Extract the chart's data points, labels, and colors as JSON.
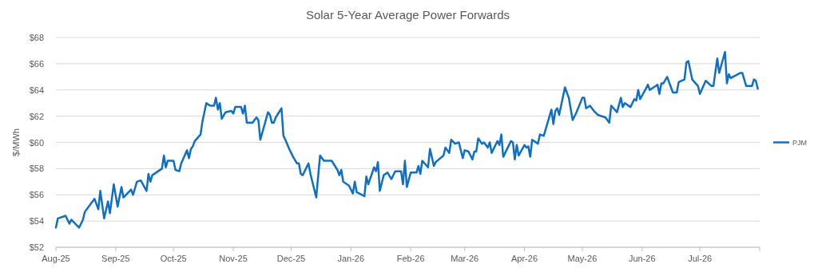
{
  "chart_data": {
    "type": "line",
    "title": "Solar 5-Year Average Power Forwards",
    "ylabel": "$/MWh",
    "x": [
      "2025-08-01",
      "2025-08-02",
      "2025-08-06",
      "2025-08-08",
      "2025-08-09",
      "2025-08-13",
      "2025-08-15",
      "2025-08-16",
      "2025-08-21",
      "2025-08-23",
      "2025-08-24",
      "2025-08-26",
      "2025-08-28",
      "2025-08-29",
      "2025-08-31",
      "2025-09-02",
      "2025-09-04",
      "2025-09-05",
      "2025-09-09",
      "2025-09-10",
      "2025-09-12",
      "2025-09-14",
      "2025-09-17",
      "2025-09-18",
      "2025-09-19",
      "2025-09-20",
      "2025-09-25",
      "2025-09-26",
      "2025-09-27",
      "2025-09-28",
      "2025-10-01",
      "2025-10-02",
      "2025-10-04",
      "2025-10-05",
      "2025-10-08",
      "2025-10-09",
      "2025-10-10",
      "2025-10-11",
      "2025-10-12",
      "2025-10-15",
      "2025-10-16",
      "2025-10-18",
      "2025-10-20",
      "2025-10-22",
      "2025-10-23",
      "2025-10-24",
      "2025-10-25",
      "2025-10-26",
      "2025-10-28",
      "2025-10-31",
      "2025-11-01",
      "2025-11-02",
      "2025-11-05",
      "2025-11-06",
      "2025-11-07",
      "2025-11-08",
      "2025-11-11",
      "2025-11-13",
      "2025-11-14",
      "2025-11-15",
      "2025-11-19",
      "2025-11-20",
      "2025-11-21",
      "2025-11-22",
      "2025-11-23",
      "2025-11-26",
      "2025-11-27",
      "2025-11-28",
      "2025-11-30",
      "2025-12-02",
      "2025-12-04",
      "2025-12-05",
      "2025-12-06",
      "2025-12-07",
      "2025-12-10",
      "2025-12-11",
      "2025-12-14",
      "2025-12-16",
      "2025-12-18",
      "2025-12-22",
      "2025-12-25",
      "2025-12-26",
      "2025-12-27",
      "2025-12-28",
      "2025-12-31",
      "2026-01-02",
      "2026-01-03",
      "2026-01-04",
      "2026-01-08",
      "2026-01-09",
      "2026-01-10",
      "2026-01-13",
      "2026-01-14",
      "2026-01-15",
      "2026-01-16",
      "2026-01-18",
      "2026-01-20",
      "2026-01-22",
      "2026-01-24",
      "2026-01-27",
      "2026-01-28",
      "2026-01-29",
      "2026-01-30",
      "2026-02-01",
      "2026-02-04",
      "2026-02-05",
      "2026-02-06",
      "2026-02-07",
      "2026-02-10",
      "2026-02-11",
      "2026-02-13",
      "2026-02-14",
      "2026-02-18",
      "2026-02-19",
      "2026-02-21",
      "2026-02-22",
      "2026-02-24",
      "2026-02-26",
      "2026-02-28",
      "2026-03-01",
      "2026-03-03",
      "2026-03-05",
      "2026-03-06",
      "2026-03-07",
      "2026-03-08",
      "2026-03-10",
      "2026-03-11",
      "2026-03-13",
      "2026-03-14",
      "2026-03-15",
      "2026-03-18",
      "2026-03-19",
      "2026-03-20",
      "2026-03-21",
      "2026-03-25",
      "2026-03-26",
      "2026-03-27",
      "2026-03-28",
      "2026-03-29",
      "2026-04-01",
      "2026-04-02",
      "2026-04-03",
      "2026-04-04",
      "2026-04-05",
      "2026-04-08",
      "2026-04-09",
      "2026-04-11",
      "2026-04-15",
      "2026-04-16",
      "2026-04-17",
      "2026-04-18",
      "2026-04-19",
      "2026-04-22",
      "2026-04-24",
      "2026-04-26",
      "2026-04-28",
      "2026-05-01",
      "2026-05-02",
      "2026-05-03",
      "2026-05-05",
      "2026-05-07",
      "2026-05-09",
      "2026-05-13",
      "2026-05-15",
      "2026-05-16",
      "2026-05-19",
      "2026-05-21",
      "2026-05-22",
      "2026-05-23",
      "2026-05-26",
      "2026-05-28",
      "2026-05-29",
      "2026-05-30",
      "2026-05-31",
      "2026-06-03",
      "2026-06-04",
      "2026-06-05",
      "2026-06-09",
      "2026-06-10",
      "2026-06-11",
      "2026-06-12",
      "2026-06-14",
      "2026-06-16",
      "2026-06-17",
      "2026-06-19",
      "2026-06-20",
      "2026-06-23",
      "2026-06-24",
      "2026-06-25",
      "2026-06-27",
      "2026-06-30",
      "2026-07-01",
      "2026-07-04",
      "2026-07-07",
      "2026-07-08",
      "2026-07-10",
      "2026-07-11",
      "2026-07-14",
      "2026-07-15",
      "2026-07-16",
      "2026-07-17",
      "2026-07-22",
      "2026-07-23",
      "2026-07-25",
      "2026-07-28",
      "2026-07-29",
      "2026-07-30",
      "2026-07-31"
    ],
    "series": [
      {
        "name": "PJM",
        "color": "#0f6fc6",
        "values": [
          53.5,
          54.2,
          54.4,
          53.8,
          54.1,
          53.5,
          54.1,
          54.7,
          55.7,
          54.9,
          56.3,
          54.2,
          55.5,
          54.6,
          56.8,
          55.1,
          56.6,
          55.8,
          56.4,
          56.0,
          57.0,
          57.1,
          56.3,
          57.6,
          57.0,
          57.5,
          58.0,
          59.0,
          58.1,
          58.6,
          58.6,
          57.9,
          57.8,
          58.4,
          59.4,
          58.8,
          59.5,
          59.7,
          60.1,
          60.6,
          61.6,
          63.0,
          62.8,
          62.8,
          63.4,
          62.5,
          63.0,
          61.8,
          62.3,
          62.4,
          62.2,
          62.7,
          62.7,
          62.2,
          62.8,
          61.5,
          61.5,
          61.9,
          61.7,
          60.2,
          62.3,
          62.1,
          61.5,
          61.5,
          61.9,
          62.6,
          60.5,
          60.2,
          59.5,
          58.9,
          58.4,
          58.4,
          57.6,
          57.5,
          58.4,
          57.6,
          55.8,
          59.0,
          58.6,
          58.6,
          57.9,
          57.5,
          57.9,
          57.0,
          56.7,
          56.1,
          57.0,
          56.2,
          55.9,
          57.4,
          56.8,
          58.1,
          57.8,
          58.5,
          56.3,
          57.5,
          57.7,
          57.2,
          57.8,
          57.8,
          56.8,
          58.6,
          56.6,
          57.7,
          57.7,
          58.2,
          57.6,
          58.6,
          58.1,
          59.5,
          58.2,
          58.5,
          59.0,
          59.6,
          59.2,
          60.2,
          59.9,
          60.0,
          58.8,
          59.4,
          59.3,
          58.7,
          59.3,
          59.3,
          60.3,
          59.9,
          60.0,
          59.6,
          60.0,
          59.2,
          60.1,
          59.8,
          60.6,
          58.9,
          60.1,
          60.0,
          58.7,
          59.8,
          59.0,
          59.8,
          59.6,
          59.7,
          58.9,
          60.2,
          59.9,
          60.6,
          60.5,
          62.5,
          61.4,
          62.4,
          62.6,
          62.1,
          64.2,
          63.4,
          61.7,
          62.3,
          63.4,
          63.4,
          62.6,
          62.8,
          62.4,
          62.1,
          61.9,
          61.5,
          62.8,
          62.3,
          63.4,
          62.7,
          63.0,
          62.7,
          63.3,
          63.2,
          64.0,
          63.3,
          64.1,
          64.4,
          64.0,
          64.4,
          63.7,
          64.5,
          64.5,
          65.0,
          64.2,
          63.8,
          63.8,
          64.6,
          64.8,
          66.1,
          66.2,
          64.8,
          64.3,
          63.7,
          64.7,
          64.3,
          64.3,
          66.4,
          65.3,
          66.9,
          64.5,
          65.2,
          64.9,
          65.3,
          65.3,
          64.3,
          64.3,
          64.8,
          64.7,
          64.1
        ]
      }
    ],
    "xlim": [
      "2025-08-01",
      "2026-08-01"
    ],
    "xticks": [
      {
        "value": "2025-08-01",
        "label": "Aug-25"
      },
      {
        "value": "2025-09-01",
        "label": "Sep-25"
      },
      {
        "value": "2025-10-01",
        "label": "Oct-25"
      },
      {
        "value": "2025-11-01",
        "label": "Nov-25"
      },
      {
        "value": "2025-12-01",
        "label": "Dec-25"
      },
      {
        "value": "2026-01-01",
        "label": "Jan-26"
      },
      {
        "value": "2026-02-01",
        "label": "Feb-26"
      },
      {
        "value": "2026-03-01",
        "label": "Mar-26"
      },
      {
        "value": "2026-04-01",
        "label": "Apr-26"
      },
      {
        "value": "2026-05-01",
        "label": "May-26"
      },
      {
        "value": "2026-06-01",
        "label": "Jun-26"
      },
      {
        "value": "2026-07-01",
        "label": "Jul-26"
      }
    ],
    "ylim": [
      52,
      68
    ],
    "yticks": [
      {
        "value": 52,
        "label": "$52"
      },
      {
        "value": 54,
        "label": "$54"
      },
      {
        "value": 56,
        "label": "$56"
      },
      {
        "value": 58,
        "label": "$58"
      },
      {
        "value": 60,
        "label": "$60"
      },
      {
        "value": 62,
        "label": "$62"
      },
      {
        "value": 64,
        "label": "$64"
      },
      {
        "value": 66,
        "label": "$66"
      },
      {
        "value": 68,
        "label": "$68"
      }
    ],
    "grid": "y",
    "legend": "right",
    "marker": "none",
    "line_style": "solid"
  }
}
